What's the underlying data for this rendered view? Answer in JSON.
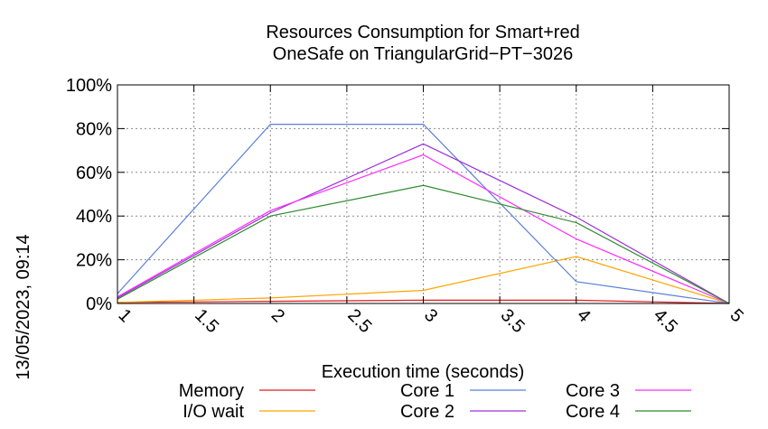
{
  "chart_data": {
    "type": "line",
    "title": [
      "Resources Consumption for Smart+red",
      "OneSafe on TriangularGrid−PT−3026"
    ],
    "xlabel": "Execution time (seconds)",
    "ylabel": "",
    "xlim": [
      1,
      5
    ],
    "ylim": [
      0,
      100
    ],
    "xticks": [
      "1",
      "1.5",
      "2",
      "2.5",
      "3",
      "3.5",
      "4",
      "4.5",
      "5"
    ],
    "yticks": [
      "0%",
      "20%",
      "40%",
      "60%",
      "80%",
      "100%"
    ],
    "grid": true,
    "legend_position": "bottom",
    "timestamp": "13/05/2023, 09:14",
    "x": [
      1,
      2,
      3,
      4,
      5
    ],
    "series": [
      {
        "name": "Memory",
        "color": "#e41a1c",
        "values": [
          0.5,
          1,
          1.5,
          1.5,
          0
        ]
      },
      {
        "name": "I/O wait",
        "color": "#ffa500",
        "values": [
          0.5,
          2.5,
          6,
          21.5,
          0
        ]
      },
      {
        "name": "Core 1",
        "color": "#5b7fd6",
        "values": [
          4.5,
          82,
          82,
          10,
          0
        ]
      },
      {
        "name": "Core 2",
        "color": "#9b30d9",
        "values": [
          2.5,
          41.5,
          73,
          39.5,
          0
        ]
      },
      {
        "name": "Core 3",
        "color": "#ff2bff",
        "values": [
          3,
          42.5,
          68,
          29.5,
          0
        ]
      },
      {
        "name": "Core 4",
        "color": "#2e8b2e",
        "values": [
          2,
          40,
          54,
          37,
          0
        ]
      }
    ]
  }
}
